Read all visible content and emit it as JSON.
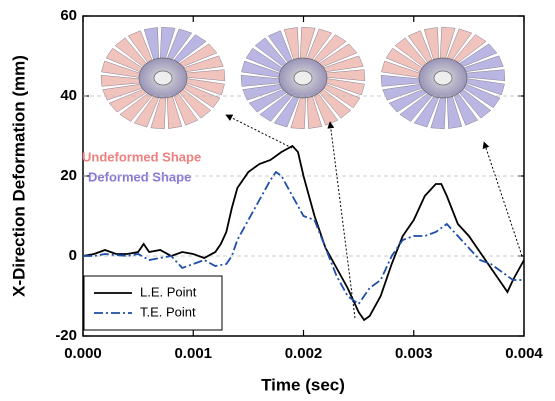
{
  "chart_data": {
    "type": "line",
    "xlabel": "Time (sec)",
    "ylabel": "X-Direction Deformation (mm)",
    "xlim": [
      0,
      0.004
    ],
    "ylim": [
      -20,
      60
    ],
    "xticks": [
      {
        "value": 0,
        "label": "0.000"
      },
      0.001,
      0.002,
      0.003,
      0.004
    ],
    "yticks": [
      -20,
      0,
      20,
      40,
      60
    ],
    "grid": true,
    "legend": "lower left",
    "annotations": [
      {
        "text": "Undeformed Shape",
        "color": "#f08080"
      },
      {
        "text": "Deformed Shape",
        "color": "#8878d8"
      }
    ],
    "series": [
      {
        "name": "L.E. Point",
        "color": "#000000",
        "style": "solid",
        "x": [
          0,
          0.0001,
          0.0002,
          0.0003,
          0.0004,
          0.0005,
          0.00055,
          0.0006,
          0.0007,
          0.0008,
          0.0009,
          0.001,
          0.0011,
          0.0012,
          0.00125,
          0.0013,
          0.00135,
          0.0014,
          0.0015,
          0.0016,
          0.0017,
          0.0018,
          0.0019,
          0.00195,
          0.002,
          0.0021,
          0.0022,
          0.0023,
          0.0024,
          0.0025,
          0.00255,
          0.0026,
          0.0027,
          0.0028,
          0.0029,
          0.003,
          0.0031,
          0.0032,
          0.00325,
          0.0033,
          0.0034,
          0.0035,
          0.0036,
          0.0037,
          0.0038,
          0.00385,
          0.0039,
          0.004
        ],
        "values": [
          0,
          0.5,
          1.5,
          0.5,
          0.5,
          1,
          3,
          1,
          1.5,
          0,
          1,
          0.5,
          -0.5,
          1,
          3,
          6,
          12,
          17,
          21,
          23,
          24,
          26,
          27.5,
          26,
          20,
          10,
          2,
          -3,
          -8,
          -14,
          -16,
          -15,
          -10,
          -2,
          5,
          9,
          15,
          18,
          18,
          15,
          8,
          5,
          1,
          -3,
          -7,
          -9,
          -6,
          -1
        ]
      },
      {
        "name": "T.E. Point",
        "color": "#1f4fa8",
        "style": "dashdot",
        "x": [
          0,
          0.0001,
          0.0002,
          0.0004,
          0.0005,
          0.0006,
          0.0008,
          0.0009,
          0.001,
          0.0011,
          0.0012,
          0.0013,
          0.00135,
          0.0014,
          0.0015,
          0.0016,
          0.0017,
          0.00175,
          0.0018,
          0.0019,
          0.002,
          0.0021,
          0.0022,
          0.0023,
          0.0024,
          0.0025,
          0.0026,
          0.0027,
          0.0028,
          0.0029,
          0.003,
          0.0031,
          0.0032,
          0.0033,
          0.0034,
          0.0035,
          0.0036,
          0.0037,
          0.0038,
          0.0039,
          0.004
        ],
        "values": [
          0,
          0,
          0.5,
          0,
          0.5,
          -1,
          0,
          -3,
          -2,
          -1,
          -2.5,
          -2,
          0,
          4,
          9,
          14,
          19,
          21,
          20,
          15,
          10,
          9,
          2,
          -5,
          -10,
          -12,
          -8,
          -6,
          0,
          4,
          5,
          5,
          6,
          8,
          5,
          2,
          -1,
          -2,
          -4,
          -6,
          -6
        ]
      }
    ]
  }
}
